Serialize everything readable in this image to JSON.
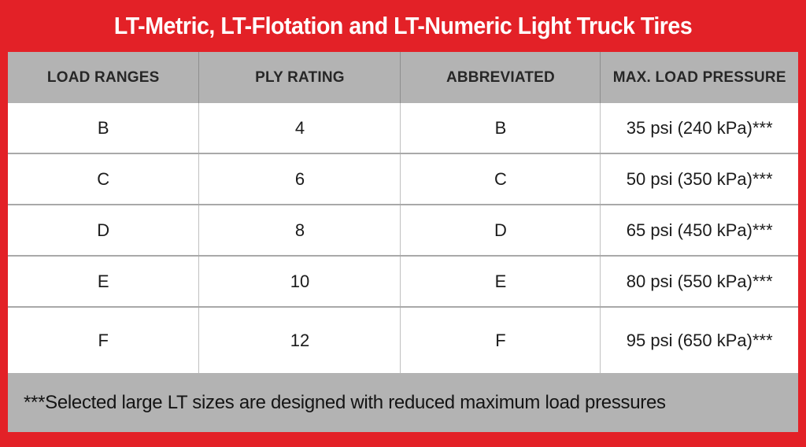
{
  "colors": {
    "background_red": "#e32127",
    "header_gray": "#b3b3b3",
    "footnote_gray": "#b3b3b3",
    "row_white": "#ffffff",
    "title_text": "#ffffff",
    "body_text": "#1b1b1b"
  },
  "chart_data": {
    "type": "table",
    "title": "LT-Metric, LT-Flotation and LT-Numeric Light Truck Tires",
    "columns": [
      "LOAD RANGES",
      "PLY RATING",
      "ABBREVIATED",
      "MAX. LOAD PRESSURE"
    ],
    "rows": [
      [
        "B",
        "4",
        "B",
        "35 psi (240 kPa)***"
      ],
      [
        "C",
        "6",
        "C",
        "50 psi (350 kPa)***"
      ],
      [
        "D",
        "8",
        "D",
        "65 psi (450 kPa)***"
      ],
      [
        "E",
        "10",
        "E",
        "80 psi (550 kPa)***"
      ],
      [
        "F",
        "12",
        "F",
        "95 psi (650 kPa)***"
      ]
    ],
    "footnote": "***Selected large LT sizes are designed with reduced maximum load pressures",
    "layout": {
      "grid": "on",
      "header_position": "top",
      "footnote_position": "bottom"
    }
  }
}
